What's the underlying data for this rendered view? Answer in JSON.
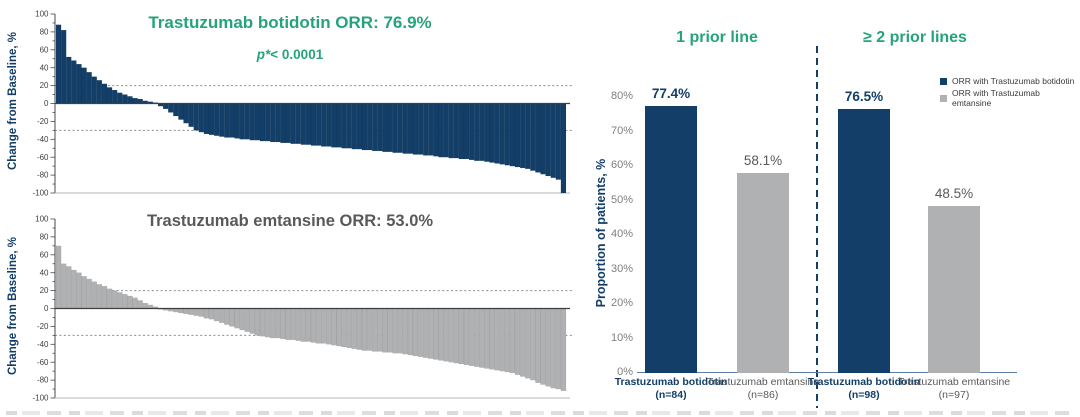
{
  "colors": {
    "navy": "#123E68",
    "gray": "#AFB1B3",
    "green": "#26A37C",
    "gray_text": "#58595B",
    "waterfall_tick_text": "#3F3F3F",
    "bar_chart_tick_text": "#7F7F7F",
    "reference_line": "#8C8C8C",
    "zero_line": "#3F3F3F",
    "x_axis_line": "#5B7DA6"
  },
  "chart_data": [
    {
      "type": "bar",
      "variant": "waterfall",
      "title": "Trastuzumab botidotin ORR: 76.9%",
      "p_label": "p*",
      "p_value": "< 0.0001",
      "ylabel": "Change from Baseline, %",
      "ylim": [
        -100,
        100
      ],
      "yticks": [
        100,
        80,
        60,
        40,
        20,
        0,
        -20,
        -40,
        -60,
        -80,
        -100
      ],
      "reference_lines": [
        20,
        -30
      ],
      "bar_color": "#123E68",
      "grid": false,
      "values": [
        88,
        82,
        52,
        48,
        44,
        40,
        35,
        30,
        26,
        22,
        18,
        15,
        12,
        10,
        8,
        6,
        5,
        3,
        2,
        1,
        -3,
        -6,
        -10,
        -14,
        -18,
        -22,
        -26,
        -30,
        -32,
        -34,
        -35,
        -36,
        -37,
        -38,
        -38,
        -39,
        -40,
        -40,
        -41,
        -41,
        -42,
        -42,
        -43,
        -43,
        -44,
        -44,
        -45,
        -45,
        -46,
        -46,
        -47,
        -47,
        -48,
        -48,
        -49,
        -49,
        -50,
        -50,
        -51,
        -51,
        -52,
        -52,
        -53,
        -53,
        -54,
        -54,
        -55,
        -55,
        -56,
        -56,
        -57,
        -57,
        -58,
        -58,
        -59,
        -60,
        -60,
        -61,
        -61,
        -62,
        -62,
        -63,
        -64,
        -64,
        -65,
        -66,
        -67,
        -68,
        -69,
        -70,
        -71,
        -72,
        -73,
        -75,
        -77,
        -79,
        -81,
        -83,
        -85,
        -100
      ]
    },
    {
      "type": "bar",
      "variant": "waterfall",
      "title": "Trastuzumab emtansine ORR: 53.0%",
      "ylabel": "Change from Baseline, %",
      "ylim": [
        -100,
        100
      ],
      "yticks": [
        100,
        80,
        60,
        40,
        20,
        0,
        -20,
        -40,
        -60,
        -80,
        -100
      ],
      "reference_lines": [
        20,
        -30
      ],
      "bar_color": "#AFB1B3",
      "grid": false,
      "values": [
        70,
        50,
        47,
        43,
        40,
        36,
        33,
        30,
        27,
        25,
        22,
        20,
        18,
        16,
        14,
        12,
        9,
        6,
        4,
        2,
        -1,
        -2,
        -3,
        -4,
        -5,
        -6,
        -7,
        -8,
        -9,
        -11,
        -12,
        -14,
        -16,
        -18,
        -20,
        -22,
        -24,
        -26,
        -28,
        -30,
        -31,
        -32,
        -33,
        -33,
        -34,
        -35,
        -35,
        -36,
        -37,
        -37,
        -38,
        -39,
        -39,
        -40,
        -41,
        -42,
        -43,
        -44,
        -45,
        -46,
        -47,
        -47,
        -48,
        -48,
        -49,
        -49,
        -50,
        -50,
        -51,
        -52,
        -53,
        -54,
        -55,
        -56,
        -57,
        -58,
        -59,
        -60,
        -61,
        -62,
        -63,
        -64,
        -65,
        -66,
        -67,
        -68,
        -69,
        -70,
        -71,
        -72,
        -74,
        -76,
        -78,
        -80,
        -83,
        -85,
        -87,
        -89,
        -90,
        -92
      ]
    },
    {
      "type": "bar",
      "variant": "grouped-column",
      "ylabel": "Proportion of patients, %",
      "ylim": [
        0,
        80
      ],
      "ytick_labels": [
        "0%",
        "10%",
        "20%",
        "30%",
        "40%",
        "50%",
        "60%",
        "70%",
        "80%"
      ],
      "grid": false,
      "legend_position": "top-right",
      "groups": [
        {
          "label": "1 prior line",
          "bars": [
            {
              "series": 0,
              "x_label": "Trastuzumab botidotin",
              "n_label": "(n=84)",
              "value": 77.4,
              "value_label": "77.4%"
            },
            {
              "series": 1,
              "x_label": "Trastuzumab emtansine",
              "n_label": "(n=86)",
              "value": 58.1,
              "value_label": "58.1%"
            }
          ]
        },
        {
          "label": "≥ 2 prior lines",
          "bars": [
            {
              "series": 0,
              "x_label": "Trastuzumab botidotin",
              "n_label": "(n=98)",
              "value": 76.5,
              "value_label": "76.5%"
            },
            {
              "series": 1,
              "x_label": "Trastuzumab emtansine",
              "n_label": "(n=97)",
              "value": 48.5,
              "value_label": "48.5%"
            }
          ]
        }
      ],
      "legend": [
        {
          "label": "ORR with Trastuzumab botidotin",
          "color": "#123E68"
        },
        {
          "label": "ORR with Trastuzumab emtansine",
          "color": "#AFB1B3"
        }
      ]
    }
  ]
}
